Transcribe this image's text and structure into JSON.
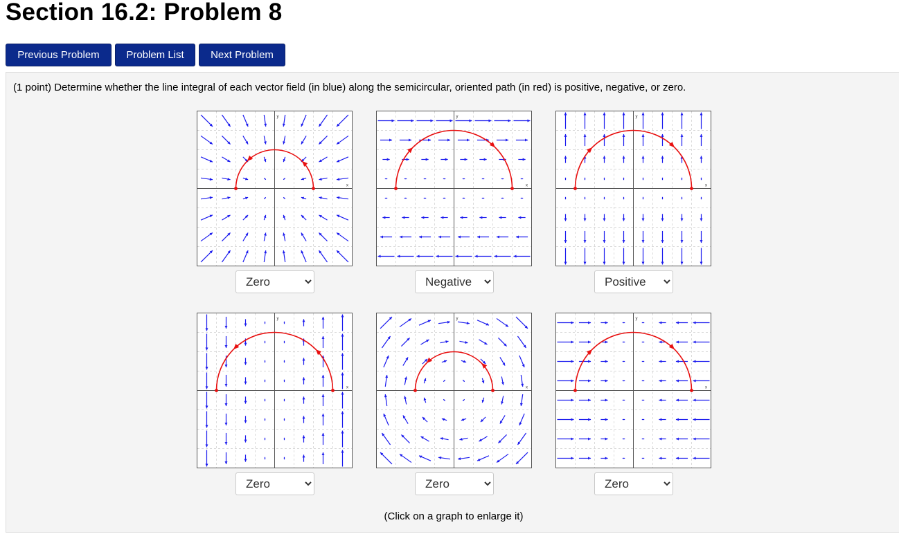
{
  "page": {
    "title": "Section 16.2: Problem 8"
  },
  "nav": {
    "previous_label": "Previous Problem",
    "list_label": "Problem List",
    "next_label": "Next Problem"
  },
  "problem": {
    "prompt": "(1 point) Determine whether the line integral of each vector field (in blue) along the semicircular, oriented path (in red) is positive, negative, or zero.",
    "caption": "(Click on a graph to enlarge it)",
    "axis_x_label": "x",
    "axis_y_label": "y",
    "answer_options": [
      "Zero",
      "Negative",
      "Positive"
    ],
    "graphs": [
      {
        "field": "radial-in",
        "path_radius": 2,
        "direction": "counterclockwise",
        "answer": "Zero"
      },
      {
        "field": "shear-right-top",
        "path_radius": 3,
        "direction": "clockwise",
        "answer": "Negative"
      },
      {
        "field": "vertical-up-top",
        "path_radius": 3,
        "direction": "clockwise",
        "answer": "Positive"
      },
      {
        "field": "vertical-split",
        "path_radius": 3,
        "direction": "counterclockwise",
        "answer": "Zero"
      },
      {
        "field": "rotation-clockwise",
        "path_radius": 2,
        "direction": "counterclockwise",
        "answer": "Zero"
      },
      {
        "field": "horizontal-inward",
        "path_radius": 3,
        "direction": "clockwise",
        "answer": "Zero"
      }
    ]
  },
  "colors": {
    "vector_field": "#1a1aee",
    "path": "#e81010",
    "button": "#0b2a8c"
  }
}
